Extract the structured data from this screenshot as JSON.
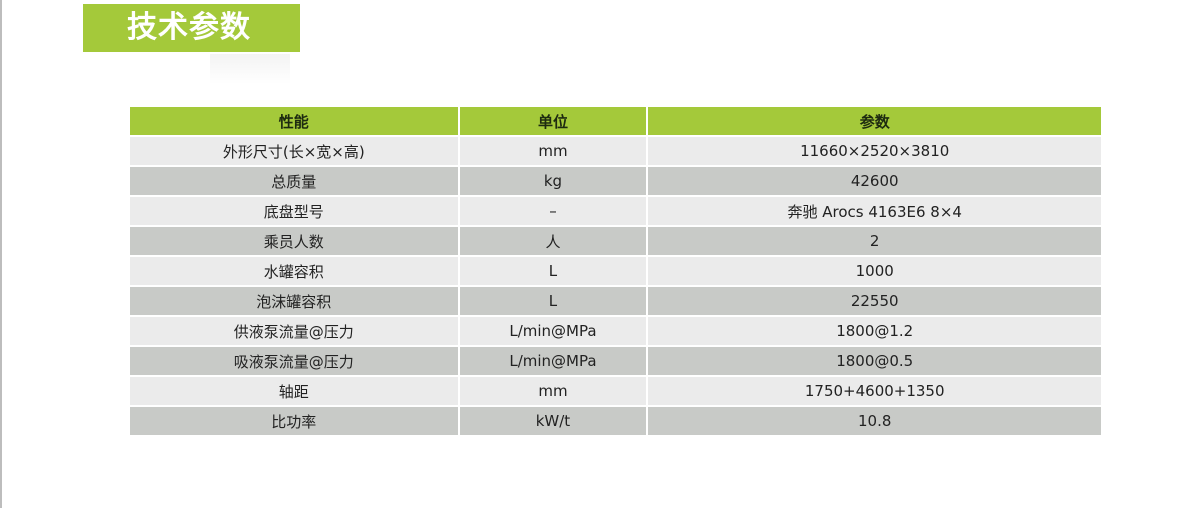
{
  "title": "技术参数",
  "colors": {
    "accent": "#a4c93a",
    "row_light": "#ebebeb",
    "row_dark": "#c8cac7"
  },
  "table": {
    "headers": [
      "性能",
      "单位",
      "参数"
    ],
    "rows": [
      [
        "外形尺寸(长×宽×高)",
        "mm",
        "11660×2520×3810"
      ],
      [
        "总质量",
        "kg",
        "42600"
      ],
      [
        "底盘型号",
        "–",
        "奔驰 Arocs 4163E6 8×4"
      ],
      [
        "乘员人数",
        "人",
        "2"
      ],
      [
        "水罐容积",
        "L",
        "1000"
      ],
      [
        "泡沫罐容积",
        "L",
        "22550"
      ],
      [
        "供液泵流量@压力",
        "L/min@MPa",
        "1800@1.2"
      ],
      [
        "吸液泵流量@压力",
        "L/min@MPa",
        "1800@0.5"
      ],
      [
        "轴距",
        "mm",
        "1750+4600+1350"
      ],
      [
        "比功率",
        "kW/t",
        "10.8"
      ]
    ]
  }
}
